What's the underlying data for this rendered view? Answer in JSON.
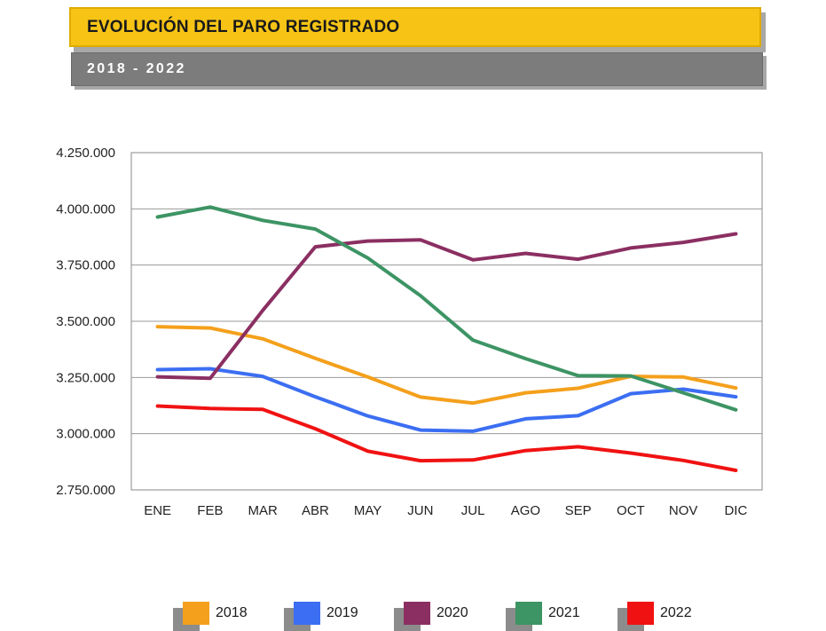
{
  "header": {
    "title": "EVOLUCIÓN DEL PARO REGISTRADO",
    "subtitle": "2018 - 2022"
  },
  "chart_data": {
    "type": "line",
    "title": "EVOLUCIÓN DEL PARO REGISTRADO",
    "subtitle": "2018 - 2022",
    "xlabel": "",
    "ylabel": "",
    "categories": [
      "ENE",
      "FEB",
      "MAR",
      "ABR",
      "MAY",
      "JUN",
      "JUL",
      "AGO",
      "SEP",
      "OCT",
      "NOV",
      "DIC"
    ],
    "ylim": [
      2750000,
      4250000
    ],
    "yticks": [
      2750000,
      3000000,
      3250000,
      3500000,
      3750000,
      4000000,
      4250000
    ],
    "ytick_labels": [
      "2.750.000",
      "3.000.000",
      "3.250.000",
      "3.500.000",
      "3.750.000",
      "4.000.000",
      "4.250.000"
    ],
    "grid": "horizontal",
    "legend_position": "bottom",
    "series": [
      {
        "name": "2018",
        "color": "#f4a01c",
        "values": [
          3476000,
          3470000,
          3422000,
          3335000,
          3252000,
          3163000,
          3136000,
          3182000,
          3202000,
          3255000,
          3252000,
          3203000
        ]
      },
      {
        "name": "2019",
        "color": "#3b6ef2",
        "values": [
          3285000,
          3289000,
          3255000,
          3164000,
          3079000,
          3016000,
          3011000,
          3066000,
          3080000,
          3178000,
          3198000,
          3164000
        ]
      },
      {
        "name": "2020",
        "color": "#8b2f62",
        "values": [
          3253000,
          3246000,
          3548000,
          3831000,
          3857000,
          3862000,
          3773000,
          3802000,
          3776000,
          3826000,
          3851000,
          3889000
        ]
      },
      {
        "name": "2021",
        "color": "#3d9464",
        "values": [
          3964000,
          4008000,
          3949000,
          3910000,
          3781000,
          3614000,
          3416000,
          3334000,
          3258000,
          3257000,
          3182000,
          3106000
        ]
      },
      {
        "name": "2022",
        "color": "#f01212",
        "values": [
          3123000,
          3112000,
          3108000,
          3022000,
          2922000,
          2880000,
          2883000,
          2925000,
          2942000,
          2914000,
          2881000,
          2837000
        ]
      }
    ]
  }
}
